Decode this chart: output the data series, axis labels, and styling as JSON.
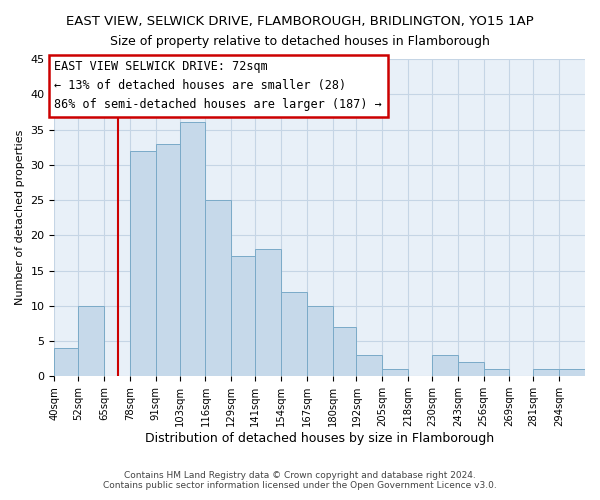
{
  "title": "EAST VIEW, SELWICK DRIVE, FLAMBOROUGH, BRIDLINGTON, YO15 1AP",
  "subtitle": "Size of property relative to detached houses in Flamborough",
  "xlabel": "Distribution of detached houses by size in Flamborough",
  "ylabel": "Number of detached properties",
  "footer_line1": "Contains HM Land Registry data © Crown copyright and database right 2024.",
  "footer_line2": "Contains public sector information licensed under the Open Government Licence v3.0.",
  "bar_labels": [
    "40sqm",
    "52sqm",
    "65sqm",
    "78sqm",
    "91sqm",
    "103sqm",
    "116sqm",
    "129sqm",
    "141sqm",
    "154sqm",
    "167sqm",
    "180sqm",
    "192sqm",
    "205sqm",
    "218sqm",
    "230sqm",
    "243sqm",
    "256sqm",
    "269sqm",
    "281sqm",
    "294sqm"
  ],
  "bar_values": [
    4,
    10,
    0,
    32,
    33,
    36,
    25,
    17,
    18,
    12,
    10,
    7,
    3,
    1,
    0,
    3,
    2,
    1,
    0,
    1,
    1
  ],
  "bar_color": "#c6d9ea",
  "bar_edge_color": "#7aaac8",
  "ylim": [
    0,
    45
  ],
  "yticks": [
    0,
    5,
    10,
    15,
    20,
    25,
    30,
    35,
    40,
    45
  ],
  "vline_x": 72,
  "vline_color": "#cc0000",
  "annotation_title": "EAST VIEW SELWICK DRIVE: 72sqm",
  "annotation_line1": "← 13% of detached houses are smaller (28)",
  "annotation_line2": "86% of semi-detached houses are larger (187) →",
  "annotation_box_color": "#ffffff",
  "annotation_box_edge": "#cc0000",
  "bin_edges": [
    40,
    52,
    65,
    78,
    91,
    103,
    116,
    129,
    141,
    154,
    167,
    180,
    192,
    205,
    218,
    230,
    243,
    256,
    269,
    281,
    294,
    307
  ],
  "bg_color": "#e8f0f8",
  "grid_color": "#c5d5e5"
}
